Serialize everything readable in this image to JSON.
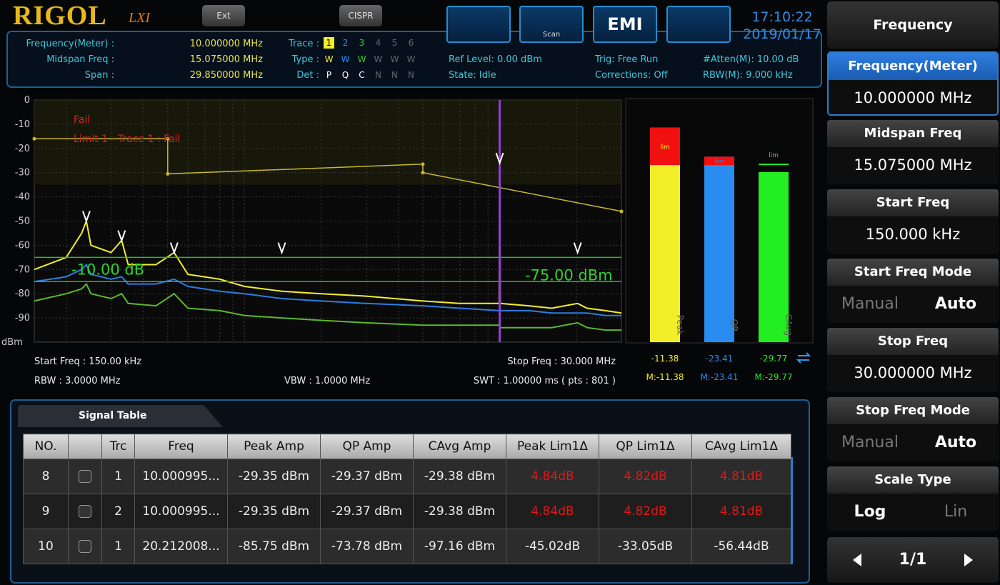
{
  "header": {
    "brand": "RIGOL",
    "brand_suffix": "LXI",
    "buttons": [
      "Ext",
      "CISPR"
    ],
    "scan_label": "Scan",
    "emi": "EMI",
    "time": "17:10:22",
    "date": "2019/01/17"
  },
  "info": {
    "left": [
      {
        "label": "Frequency(Meter) :",
        "value": "10.000000 MHz"
      },
      {
        "label": "Midspan Freq :",
        "value": "15.075000 MHz"
      },
      {
        "label": "Span :",
        "value": "29.850000 MHz"
      }
    ],
    "trace": {
      "labels": [
        "Trace :",
        "Type :",
        "Det :"
      ],
      "numbers": [
        "1",
        "2",
        "3",
        "4",
        "5",
        "6"
      ],
      "types": [
        "W",
        "W",
        "W",
        "W",
        "W",
        "W"
      ],
      "dets": [
        "P",
        "Q",
        "C",
        "N",
        "N",
        "N"
      ],
      "colors": [
        "#f2ee2a",
        "#2a8cf0",
        "#35c93a",
        "#666",
        "#666",
        "#666"
      ]
    },
    "status": [
      "Ref Level: 0.00 dBm",
      "State: Idle",
      "Trig: Free Run",
      "Corrections: Off",
      "#Atten(M): 10.00 dB",
      "RBW(M): 9.000 kHz"
    ]
  },
  "spectrum": {
    "type": "line",
    "xlim": [
      0.15,
      30
    ],
    "x_log": true,
    "ylim": [
      -100,
      0
    ],
    "yticks": [
      0,
      -10,
      -20,
      -30,
      -40,
      -50,
      -60,
      -70,
      -80,
      -90
    ],
    "y_unit": "dBm",
    "grid": true,
    "xgrid": [
      0.2,
      0.3,
      0.4,
      0.5,
      0.6,
      0.7,
      0.8,
      0.9,
      1,
      2,
      3,
      4,
      5,
      6,
      7,
      8,
      9,
      10,
      20
    ],
    "annotations": [
      "Fail",
      "Limit 1 - Trace 1 : Fail"
    ],
    "limit_line": {
      "color": "#c8b830",
      "x": [
        0.15,
        0.5,
        0.5,
        5,
        5,
        30
      ],
      "y": [
        -16,
        -16,
        -30.5,
        -26.5,
        -30,
        -46
      ]
    },
    "level_lines": [
      {
        "value": -65,
        "label": "-10.00 dB"
      },
      {
        "value": -75,
        "label": "-75.00 dBm"
      }
    ],
    "marker_line": 10,
    "markers": {
      "x": [
        0.24,
        0.33,
        0.53,
        1.4,
        10,
        20.2
      ],
      "y": [
        -50,
        -58,
        -63,
        -63,
        -26,
        -63
      ]
    },
    "traces": [
      {
        "color": "#5cb82c",
        "x": [
          0.15,
          0.2,
          0.23,
          0.24,
          0.25,
          0.3,
          0.33,
          0.35,
          0.45,
          0.53,
          0.6,
          0.8,
          1.0,
          1.4,
          2,
          3,
          5,
          7,
          9.95,
          10,
          10.05,
          13,
          16,
          20.2,
          22,
          26,
          30
        ],
        "y": [
          -83,
          -80,
          -78,
          -76,
          -80,
          -82,
          -80,
          -84,
          -85,
          -80,
          -86,
          -87,
          -89,
          -90,
          -91,
          -92,
          -93,
          -93,
          -93,
          -90,
          -94,
          -94,
          -94,
          -92,
          -94,
          -95,
          -95
        ]
      },
      {
        "color": "#2a7ee0",
        "x": [
          0.15,
          0.2,
          0.23,
          0.24,
          0.25,
          0.3,
          0.33,
          0.35,
          0.45,
          0.53,
          0.6,
          0.8,
          1.0,
          1.4,
          2,
          3,
          5,
          7,
          9.95,
          10,
          10.05,
          13,
          16,
          20.2,
          22,
          26,
          30
        ],
        "y": [
          -75,
          -73,
          -70,
          -68,
          -72,
          -74,
          -73,
          -76,
          -76,
          -74,
          -77,
          -79,
          -80,
          -82,
          -83,
          -84,
          -85,
          -86,
          -87,
          -83,
          -87,
          -87,
          -88,
          -88,
          -88,
          -89,
          -89
        ]
      },
      {
        "color": "#f2ee2a",
        "x": [
          0.15,
          0.2,
          0.23,
          0.24,
          0.25,
          0.3,
          0.33,
          0.35,
          0.45,
          0.53,
          0.6,
          0.8,
          1.0,
          1.4,
          2,
          3,
          5,
          7,
          9.95,
          10,
          10.05,
          13,
          16,
          20.2,
          22,
          26,
          30
        ],
        "y": [
          -70,
          -65,
          -55,
          -50,
          -60,
          -63,
          -58,
          -68,
          -68,
          -63,
          -72,
          -74,
          -77,
          -79,
          -80,
          -81,
          -83,
          -84,
          -84,
          -26,
          -84,
          -85,
          -86,
          -84,
          -86,
          -87,
          -88
        ]
      }
    ],
    "footer": {
      "start": "Start Freq : 150.00 kHz",
      "rbw": "RBW : 3.0000 MHz",
      "vbw": "VBW : 1.0000 MHz",
      "stop": "Stop Freq : 30.000 MHz",
      "swt": "SWT : 1.00000 ms ( pts : 801 )"
    }
  },
  "meters": {
    "names": [
      "Peak",
      "QP",
      "CAvg"
    ],
    "colors": [
      "#f2ee2a",
      "#2a8cf0",
      "#22ee22"
    ],
    "values": [
      -11.38,
      -23.41,
      -29.77
    ],
    "max_labels": [
      "M:-11.38",
      "M:-23.41",
      "M:-29.77"
    ],
    "limit": -26.6,
    "limit_label": "lim"
  },
  "signal_table": {
    "title": "Signal Table",
    "columns": [
      "NO.",
      "Trc",
      "Freq",
      "Peak Amp",
      "QP Amp",
      "CAvg Amp",
      "Peak Lim1Δ",
      "QP Lim1Δ",
      "CAvg Lim1Δ"
    ],
    "rows": [
      {
        "no": 8,
        "trc": 1,
        "freq": "10.000995...",
        "peak_amp": "-29.35 dBm",
        "qp_amp": "-29.37 dBm",
        "cavg_amp": "-29.38 dBm",
        "peak_delta": "4.84dB",
        "qp_delta": "4.82dB",
        "cavg_delta": "4.81dB",
        "fail": true
      },
      {
        "no": 9,
        "trc": 2,
        "freq": "10.000995...",
        "peak_amp": "-29.35 dBm",
        "qp_amp": "-29.37 dBm",
        "cavg_amp": "-29.38 dBm",
        "peak_delta": "4.84dB",
        "qp_delta": "4.82dB",
        "cavg_delta": "4.81dB",
        "fail": true
      },
      {
        "no": 10,
        "trc": 1,
        "freq": "20.212008...",
        "peak_amp": "-85.75 dBm",
        "qp_amp": "-73.78 dBm",
        "cavg_amp": "-97.16 dBm",
        "peak_delta": "-45.02dB",
        "qp_delta": "-33.05dB",
        "cavg_delta": "-56.44dB",
        "fail": false
      }
    ]
  },
  "menu": {
    "title": "Frequency",
    "items": [
      {
        "label": "Frequency(Meter)",
        "value": "10.000000 MHz",
        "selected": true
      },
      {
        "label": "Midspan Freq",
        "value": "15.075000 MHz"
      },
      {
        "label": "Start Freq",
        "value": "150.000 kHz"
      },
      {
        "label": "Start Freq Mode",
        "options": [
          "Manual",
          "Auto"
        ],
        "active": 1
      },
      {
        "label": "Stop Freq",
        "value": "30.000000 MHz"
      },
      {
        "label": "Stop Freq Mode",
        "options": [
          "Manual",
          "Auto"
        ],
        "active": 1
      },
      {
        "label": "Scale Type",
        "options": [
          "Log",
          "Lin"
        ],
        "active": 0
      }
    ],
    "page": "1/1"
  }
}
